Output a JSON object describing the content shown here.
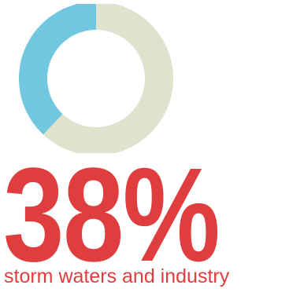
{
  "chart_data": {
    "type": "pie",
    "style": "donut",
    "values": [
      38,
      62
    ],
    "colors": [
      "#72c7e0",
      "#dfe2cc"
    ],
    "start": "top",
    "direction": "counter-clockwise for first slice"
  },
  "headline": {
    "value": "38%",
    "caption": "storm waters and industry"
  },
  "colors": {
    "accent": "#e03e3e",
    "highlight_slice": "#72c7e0",
    "remainder_slice": "#dfe2cc",
    "background": "#ffffff"
  }
}
